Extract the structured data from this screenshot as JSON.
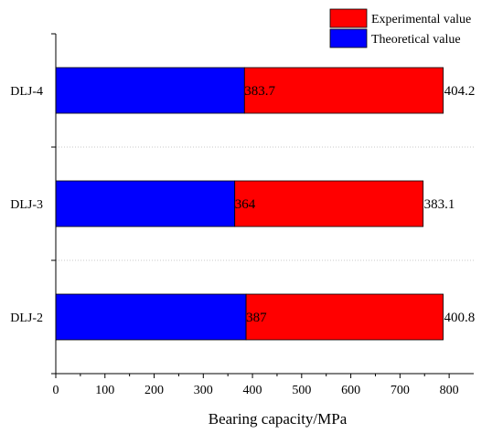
{
  "chart_data": {
    "type": "bar",
    "orientation": "horizontal",
    "stacked": true,
    "categories": [
      "DLJ-2",
      "DLJ-3",
      "DLJ-4"
    ],
    "series": [
      {
        "name": "Theoretical value",
        "color": "#0000ff",
        "values": [
          387,
          364,
          383.7
        ],
        "labels": [
          "387",
          "364",
          "383.7"
        ]
      },
      {
        "name": "Experimental value",
        "color": "#ff0000",
        "values": [
          400.8,
          383.1,
          404.2
        ],
        "labels": [
          "400.8",
          "383.1",
          "404.2"
        ]
      }
    ],
    "xlabel": "Bearing capacity/MPa",
    "ylabel": "",
    "title": "",
    "xlim": [
      0,
      850
    ],
    "xticks": [
      0,
      100,
      200,
      300,
      400,
      500,
      600,
      700,
      800
    ],
    "legend_position": "top-right",
    "grid": "dotted separators between categories"
  }
}
